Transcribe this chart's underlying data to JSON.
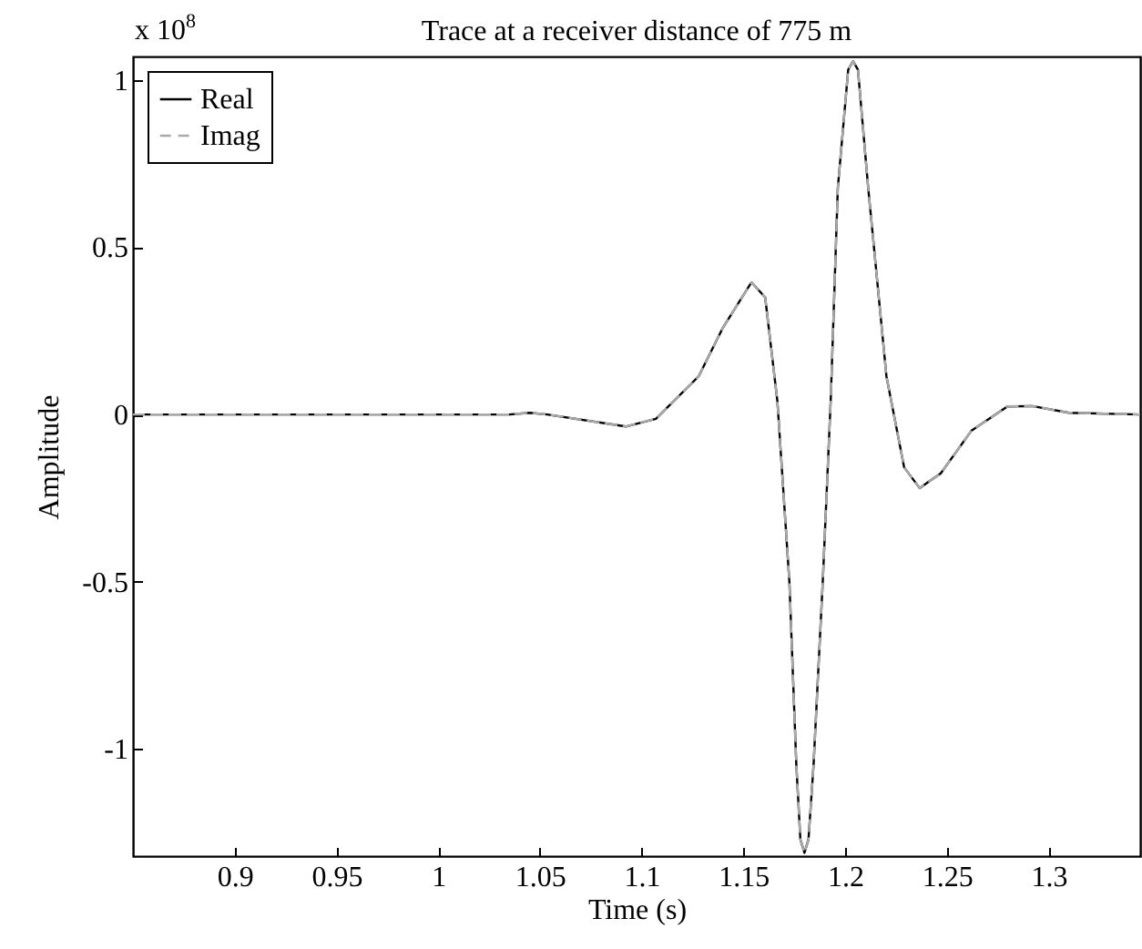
{
  "chart_data": {
    "type": "line",
    "title": "Trace at a receiver distance of 775 m",
    "xlabel": "Time (s)",
    "ylabel": "Amplitude",
    "annotations": [
      "x 10$^{8}$"
    ],
    "x": [
      0.85,
      0.9,
      1.0,
      1.035,
      1.045,
      1.0536,
      1.0922,
      1.107,
      1.128,
      1.14,
      1.154,
      1.1607,
      1.1667,
      1.1726,
      1.176,
      1.178,
      1.18,
      1.182,
      1.1845,
      1.189,
      1.1929,
      1.1964,
      1.2015,
      1.2039,
      1.2063,
      1.2113,
      1.2203,
      1.229,
      1.2366,
      1.247,
      1.262,
      1.2798,
      1.292,
      1.31,
      1.345
    ],
    "series": [
      {
        "name": "Real",
        "color": "#000000",
        "line_style": "solid",
        "values": [
          0,
          0,
          0,
          0,
          0.005,
          0,
          -0.036,
          -0.013,
          0.114,
          0.26,
          0.395,
          0.35,
          0.04,
          -0.5,
          -1.045,
          -1.27,
          -1.31,
          -1.27,
          -1.045,
          -0.5,
          0.04,
          0.676,
          1.03,
          1.056,
          1.03,
          0.68,
          0.114,
          -0.158,
          -0.22,
          -0.176,
          -0.049,
          0.024,
          0.025,
          0.005,
          0
        ]
      },
      {
        "name": "Imag",
        "color": "#aaaaaa",
        "line_style": "dashed",
        "values": [
          0,
          0,
          0,
          0,
          0.005,
          0,
          -0.036,
          -0.013,
          0.114,
          0.26,
          0.395,
          0.35,
          0.04,
          -0.5,
          -1.045,
          -1.27,
          -1.31,
          -1.27,
          -1.045,
          -0.5,
          0.04,
          0.676,
          1.03,
          1.056,
          1.03,
          0.68,
          0.114,
          -0.158,
          -0.22,
          -0.176,
          -0.049,
          0.024,
          0.025,
          0.005,
          0
        ]
      }
    ],
    "xlim": [
      0.85,
      1.345
    ],
    "ylim": [
      -1.32,
      1.07
    ],
    "xticks": [
      0.9,
      0.95,
      1,
      1.05,
      1.1,
      1.15,
      1.2,
      1.25,
      1.3
    ],
    "yticks": [
      -1,
      -0.5,
      0,
      0.5,
      1
    ],
    "grid": false,
    "legend": "top left"
  }
}
